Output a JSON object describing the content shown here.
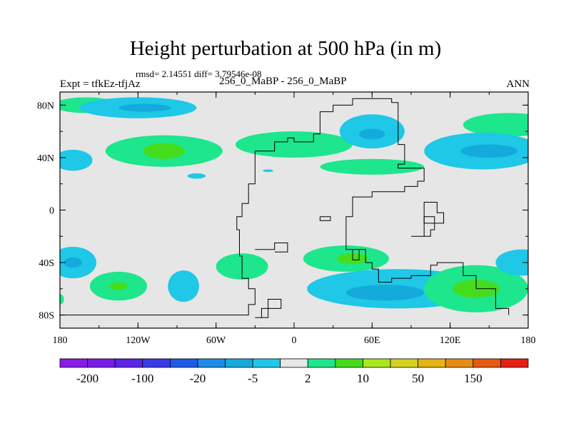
{
  "header": {
    "title": "Height perturbation at 500 hPa (in m)",
    "stats": "rmsd= 2.14551 diff= 3.79546e-08",
    "left_label": "Expt = tfkEz-tfjAz",
    "center_label": "256_0_MaBP - 256_0_MaBP",
    "right_label": "ANN"
  },
  "chart_data": {
    "type": "heatmap",
    "title": "Height perturbation at 500 hPa (in m)",
    "subtitle": "256_0_MaBP - 256_0_MaBP",
    "x_ticks": [
      "180",
      "120W",
      "60W",
      "0",
      "60E",
      "120E",
      "180"
    ],
    "x_tick_values": [
      -180,
      -120,
      -60,
      0,
      60,
      120,
      180
    ],
    "y_ticks": [
      "80N",
      "40N",
      "0",
      "40S",
      "80S"
    ],
    "y_tick_values": [
      80,
      40,
      0,
      -40,
      -80
    ],
    "xlim": [
      -180,
      180
    ],
    "ylim": [
      -90,
      90
    ],
    "colorbar": {
      "colors": [
        "#8a1ae6",
        "#7a1ae6",
        "#5a23e6",
        "#3a3ae6",
        "#1e5ae6",
        "#1e8ce6",
        "#14aadc",
        "#1ec8e6",
        "#e6e6e6",
        "#1ee68c",
        "#46dc1e",
        "#aae61e",
        "#d2d21e",
        "#e6b414",
        "#e68c14",
        "#e65a14",
        "#e61e14"
      ],
      "labels": [
        "-200",
        "-100",
        "-20",
        "-5",
        "2",
        "10",
        "50",
        "150"
      ]
    },
    "fields": [
      {
        "name": "positive-anomaly",
        "level": 2,
        "cx": -100,
        "cy": 45,
        "rx": 45,
        "ry": 12
      },
      {
        "name": "positive-anomaly",
        "level": 3,
        "cx": -100,
        "cy": 45,
        "rx": 16,
        "ry": 6
      },
      {
        "name": "positive-anomaly",
        "level": 2,
        "cx": 0,
        "cy": 50,
        "rx": 45,
        "ry": 10
      },
      {
        "name": "positive-anomaly",
        "level": 2,
        "cx": 60,
        "cy": 33,
        "rx": 40,
        "ry": 6
      },
      {
        "name": "positive-anomaly",
        "level": 2,
        "cx": 165,
        "cy": 65,
        "rx": 35,
        "ry": 9
      },
      {
        "name": "positive-anomaly",
        "level": 2,
        "cx": -160,
        "cy": 80,
        "rx": 25,
        "ry": 6
      },
      {
        "name": "negative-anomaly",
        "level": 1,
        "cx": -120,
        "cy": 78,
        "rx": 45,
        "ry": 8
      },
      {
        "name": "negative-anomaly",
        "level": 2,
        "cx": -115,
        "cy": 78,
        "rx": 20,
        "ry": 3
      },
      {
        "name": "negative-anomaly",
        "level": 1,
        "cx": 60,
        "cy": 60,
        "rx": 25,
        "ry": 13
      },
      {
        "name": "negative-anomaly",
        "level": 2,
        "cx": 60,
        "cy": 58,
        "rx": 10,
        "ry": 4
      },
      {
        "name": "negative-anomaly",
        "level": 1,
        "cx": 145,
        "cy": 45,
        "rx": 45,
        "ry": 14
      },
      {
        "name": "negative-anomaly",
        "level": 2,
        "cx": 150,
        "cy": 45,
        "rx": 22,
        "ry": 5
      },
      {
        "name": "negative-anomaly",
        "level": 1,
        "cx": -170,
        "cy": 38,
        "rx": 15,
        "ry": 8
      },
      {
        "name": "negative-anomaly",
        "level": 1,
        "cx": -75,
        "cy": 26,
        "rx": 7,
        "ry": 2
      },
      {
        "name": "negative-anomaly",
        "level": 1,
        "cx": -20,
        "cy": 30,
        "rx": 4,
        "ry": 1
      },
      {
        "name": "negative-anomaly",
        "level": 1,
        "cx": -170,
        "cy": -40,
        "rx": 18,
        "ry": 12
      },
      {
        "name": "negative-anomaly",
        "level": 2,
        "cx": -170,
        "cy": -40,
        "rx": 7,
        "ry": 4
      },
      {
        "name": "positive-anomaly",
        "level": 2,
        "cx": -135,
        "cy": -58,
        "rx": 22,
        "ry": 11
      },
      {
        "name": "positive-anomaly",
        "level": 3,
        "cx": -135,
        "cy": -58,
        "rx": 7,
        "ry": 3
      },
      {
        "name": "negative-anomaly",
        "level": 1,
        "cx": -85,
        "cy": -58,
        "rx": 12,
        "ry": 12
      },
      {
        "name": "positive-anomaly",
        "level": 2,
        "cx": -40,
        "cy": -43,
        "rx": 20,
        "ry": 10
      },
      {
        "name": "positive-anomaly",
        "level": 2,
        "cx": 40,
        "cy": -37,
        "rx": 33,
        "ry": 10
      },
      {
        "name": "positive-anomaly",
        "level": 3,
        "cx": 45,
        "cy": -37,
        "rx": 12,
        "ry": 4
      },
      {
        "name": "negative-anomaly",
        "level": 1,
        "cx": 80,
        "cy": -60,
        "rx": 70,
        "ry": 15
      },
      {
        "name": "negative-anomaly",
        "level": 2,
        "cx": 70,
        "cy": -63,
        "rx": 30,
        "ry": 6
      },
      {
        "name": "positive-anomaly",
        "level": 2,
        "cx": 140,
        "cy": -60,
        "rx": 40,
        "ry": 18
      },
      {
        "name": "positive-anomaly",
        "level": 3,
        "cx": 140,
        "cy": -60,
        "rx": 18,
        "ry": 7
      },
      {
        "name": "negative-anomaly",
        "level": 1,
        "cx": 175,
        "cy": -40,
        "rx": 20,
        "ry": 10
      },
      {
        "name": "positive-anomaly",
        "level": 2,
        "cx": -180,
        "cy": -68,
        "rx": 3,
        "ry": 4
      }
    ],
    "continent_outlines": [
      [
        [
          -180,
          -80
        ],
        [
          -35,
          -80
        ],
        [
          -35,
          -72
        ],
        [
          -30,
          -72
        ],
        [
          -30,
          -60
        ],
        [
          -35,
          -60
        ],
        [
          -35,
          -52
        ],
        [
          -40,
          -52
        ],
        [
          -40,
          -35
        ],
        [
          -42,
          -35
        ],
        [
          -42,
          -15
        ],
        [
          -44,
          -15
        ],
        [
          -44,
          -5
        ],
        [
          -40,
          -5
        ],
        [
          -40,
          5
        ],
        [
          -35,
          5
        ],
        [
          -35,
          20
        ],
        [
          -30,
          20
        ],
        [
          -30,
          45
        ],
        [
          -15,
          45
        ],
        [
          -15,
          52
        ],
        [
          -5,
          52
        ],
        [
          -5,
          55
        ],
        [
          0,
          55
        ],
        [
          0,
          52
        ],
        [
          15,
          52
        ],
        [
          15,
          58
        ],
        [
          20,
          58
        ],
        [
          20,
          75
        ],
        [
          30,
          75
        ],
        [
          30,
          80
        ],
        [
          45,
          80
        ],
        [
          45,
          85
        ],
        [
          75,
          85
        ],
        [
          75,
          82
        ],
        [
          80,
          82
        ],
        [
          80,
          50
        ],
        [
          85,
          50
        ],
        [
          85,
          35
        ],
        [
          80,
          35
        ],
        [
          80,
          32
        ],
        [
          100,
          32
        ],
        [
          100,
          22
        ],
        [
          95,
          22
        ],
        [
          95,
          18
        ],
        [
          85,
          18
        ],
        [
          85,
          14
        ],
        [
          60,
          14
        ],
        [
          60,
          10
        ],
        [
          45,
          10
        ],
        [
          45,
          -5
        ],
        [
          40,
          -5
        ],
        [
          40,
          -30
        ],
        [
          55,
          -30
        ],
        [
          55,
          -40
        ],
        [
          60,
          -40
        ],
        [
          60,
          -45
        ],
        [
          65,
          -45
        ],
        [
          65,
          -55
        ],
        [
          75,
          -55
        ],
        [
          75,
          -52
        ],
        [
          90,
          -52
        ],
        [
          90,
          -50
        ],
        [
          105,
          -50
        ],
        [
          105,
          -42
        ],
        [
          110,
          -42
        ],
        [
          110,
          -40
        ],
        [
          130,
          -40
        ],
        [
          130,
          -50
        ],
        [
          140,
          -50
        ],
        [
          140,
          -60
        ],
        [
          155,
          -60
        ],
        [
          155,
          -75
        ],
        [
          165,
          -75
        ],
        [
          165,
          -80
        ]
      ],
      [
        [
          -30,
          -82
        ],
        [
          -20,
          -82
        ],
        [
          -20,
          -68
        ],
        [
          -10,
          -68
        ],
        [
          -10,
          -75
        ],
        [
          -25,
          -75
        ],
        [
          -25,
          -82
        ]
      ],
      [
        [
          -30,
          -30
        ],
        [
          -15,
          -30
        ],
        [
          -15,
          -25
        ],
        [
          -5,
          -25
        ],
        [
          -5,
          -32
        ],
        [
          -15,
          -32
        ]
      ],
      [
        [
          90,
          -20
        ],
        [
          100,
          -20
        ],
        [
          100,
          -5
        ],
        [
          108,
          -5
        ],
        [
          108,
          -15
        ],
        [
          105,
          -15
        ],
        [
          105,
          -20
        ],
        [
          100,
          -20
        ]
      ],
      [
        [
          100,
          -10
        ],
        [
          115,
          -10
        ],
        [
          115,
          -2
        ],
        [
          110,
          -2
        ],
        [
          110,
          6
        ],
        [
          100,
          6
        ],
        [
          100,
          -10
        ]
      ],
      [
        [
          20,
          -5
        ],
        [
          28,
          -5
        ],
        [
          28,
          -8
        ],
        [
          20,
          -8
        ],
        [
          20,
          -5
        ]
      ],
      [
        [
          45,
          -30
        ],
        [
          45,
          -38
        ],
        [
          50,
          -38
        ],
        [
          50,
          -30
        ]
      ]
    ]
  }
}
